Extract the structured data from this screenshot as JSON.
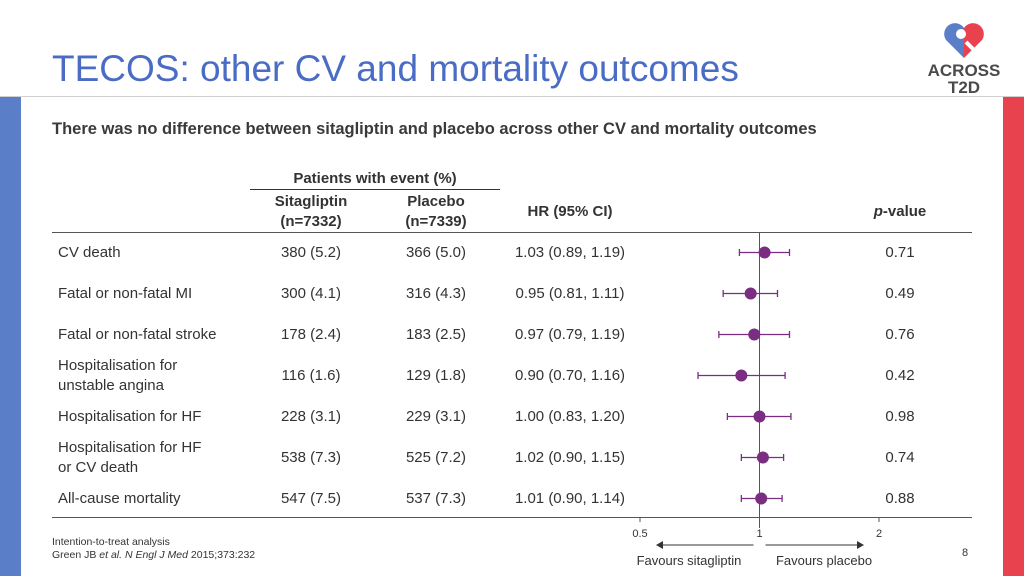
{
  "slide": {
    "title": "TECOS: other CV and mortality outcomes",
    "subtitle": "There was no difference between sitagliptin and placebo across other CV and mortality outcomes",
    "page_number": "8",
    "colors": {
      "left_bar": "#5b7ec8",
      "right_bar": "#e8424e",
      "title": "#4a6cc4",
      "marker": "#7b2d82"
    }
  },
  "logo": {
    "line1": "ACROSS",
    "line2": "T2D"
  },
  "table": {
    "group_header": "Patients with event (%)",
    "col_sita": "Sitagliptin",
    "col_sita_n": "(n=7332)",
    "col_placebo": "Placebo",
    "col_placebo_n": "(n=7339)",
    "col_hr": "HR (95% CI)",
    "col_p_italic": "p",
    "col_p_rest": "-value"
  },
  "footer": {
    "line1": "Intention-to-treat analysis",
    "ref_a": "Green JB ",
    "ref_b": "et al. N Engl J Med",
    "ref_c": " 2015;373:232"
  },
  "chart_data": {
    "type": "forest",
    "scale": "log",
    "xlim": [
      0.5,
      2
    ],
    "ticks": [
      {
        "value": 0.5,
        "label": "0.5"
      },
      {
        "value": 1,
        "label": "1"
      },
      {
        "value": 2,
        "label": "2"
      }
    ],
    "reference_line": 1,
    "left_label": "Favours sitagliptin",
    "right_label": "Favours placebo",
    "rows": [
      {
        "outcome_lines": [
          "CV death"
        ],
        "sitagliptin": "380 (5.2)",
        "placebo": "366 (5.0)",
        "hr_text": "1.03 (0.89, 1.19)",
        "hr": 1.03,
        "lo": 0.89,
        "hi": 1.19,
        "p": "0.71"
      },
      {
        "outcome_lines": [
          "Fatal or non-fatal MI"
        ],
        "sitagliptin": "300 (4.1)",
        "placebo": "316 (4.3)",
        "hr_text": "0.95 (0.81, 1.11)",
        "hr": 0.95,
        "lo": 0.81,
        "hi": 1.11,
        "p": "0.49"
      },
      {
        "outcome_lines": [
          "Fatal or non-fatal stroke"
        ],
        "sitagliptin": "178 (2.4)",
        "placebo": "183 (2.5)",
        "hr_text": "0.97 (0.79, 1.19)",
        "hr": 0.97,
        "lo": 0.79,
        "hi": 1.19,
        "p": "0.76"
      },
      {
        "outcome_lines": [
          "Hospitalisation for",
          "unstable angina"
        ],
        "sitagliptin": "116 (1.6)",
        "placebo": "129 (1.8)",
        "hr_text": "0.90 (0.70, 1.16)",
        "hr": 0.9,
        "lo": 0.7,
        "hi": 1.16,
        "p": "0.42"
      },
      {
        "outcome_lines": [
          "Hospitalisation for HF"
        ],
        "sitagliptin": "228 (3.1)",
        "placebo": "229 (3.1)",
        "hr_text": "1.00 (0.83, 1.20)",
        "hr": 1.0,
        "lo": 0.83,
        "hi": 1.2,
        "p": "0.98"
      },
      {
        "outcome_lines": [
          "Hospitalisation for HF",
          "or CV death"
        ],
        "sitagliptin": "538 (7.3)",
        "placebo": "525 (7.2)",
        "hr_text": "1.02 (0.90, 1.15)",
        "hr": 1.02,
        "lo": 0.9,
        "hi": 1.15,
        "p": "0.74"
      },
      {
        "outcome_lines": [
          "All-cause mortality"
        ],
        "sitagliptin": "547 (7.5)",
        "placebo": "537 (7.3)",
        "hr_text": "1.01 (0.90, 1.14)",
        "hr": 1.01,
        "lo": 0.9,
        "hi": 1.14,
        "p": "0.88"
      }
    ]
  }
}
